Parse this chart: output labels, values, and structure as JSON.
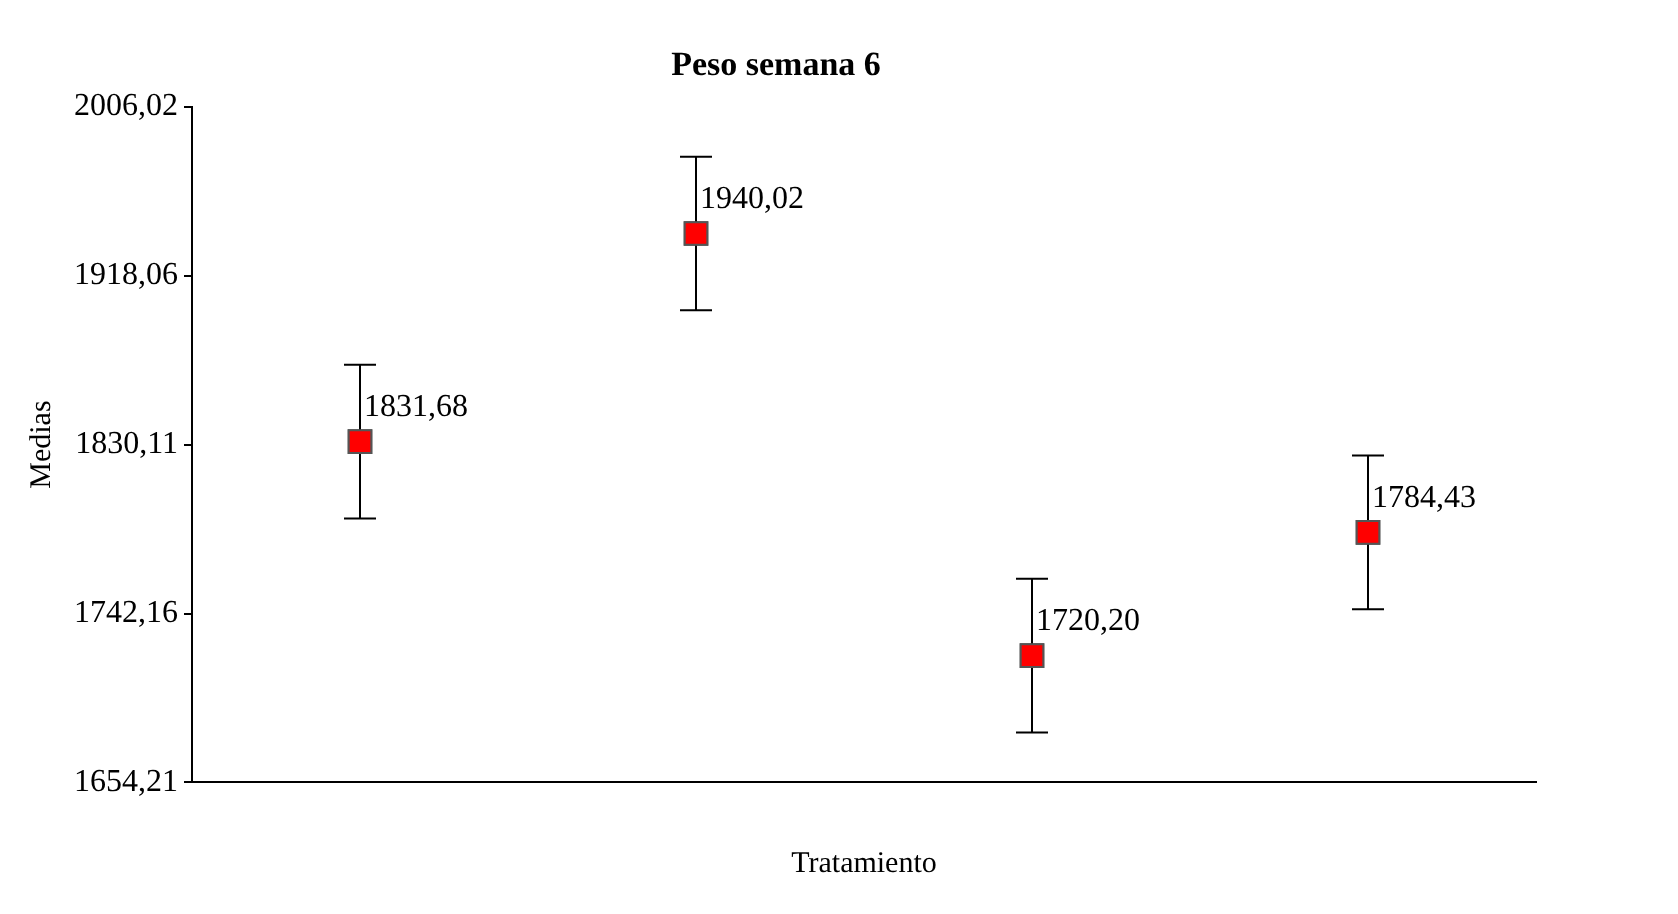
{
  "chart_data": {
    "type": "scatter",
    "title": "Peso semana 6",
    "xlabel": "Tratamiento",
    "ylabel": "Medias",
    "categories": [
      null,
      null,
      null,
      null
    ],
    "series": [
      {
        "color": "#ff0000",
        "values": [
          1831.68,
          1940.02,
          1720.2,
          1784.43
        ],
        "errors": [
          40,
          40,
          40,
          40
        ],
        "value_labels": [
          "1831,68",
          "1940,02",
          "1720,20",
          "1784,43"
        ]
      }
    ],
    "ylim": [
      1654.21,
      2006.02
    ],
    "yticks": [
      {
        "value": 1654.21,
        "label": "1654,21"
      },
      {
        "value": 1742.16,
        "label": "1742,16"
      },
      {
        "value": 1830.11,
        "label": "1830,11"
      },
      {
        "value": 1918.06,
        "label": "1918,06"
      },
      {
        "value": 2006.02,
        "label": "2006,02"
      }
    ],
    "marker": "square",
    "grid": false,
    "legend": false
  }
}
